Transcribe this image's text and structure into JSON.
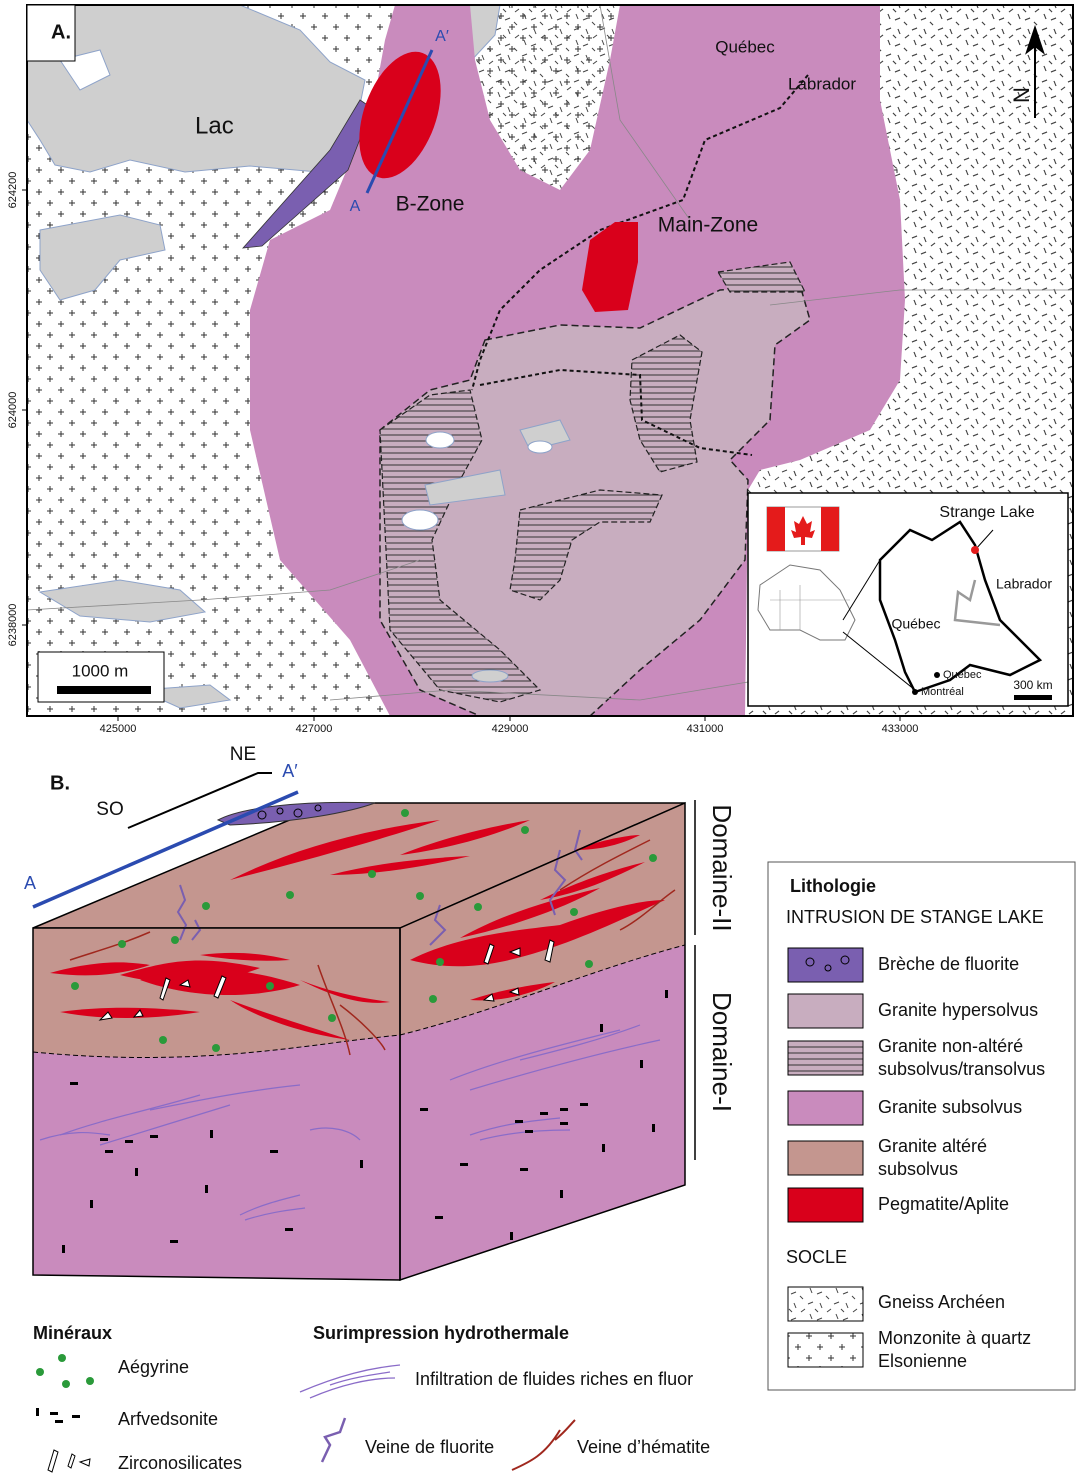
{
  "panel_a": {
    "label": "A.",
    "lake": "Lac",
    "b_zone": "B-Zone",
    "main_zone": "Main-Zone",
    "quebec": "Québec",
    "labrador": "Labrador",
    "section_start": "A",
    "section_end": "A′",
    "north": "N",
    "scale": "1000 m",
    "x_axis": [
      "425000",
      "427000",
      "429000",
      "431000",
      "433000"
    ],
    "y_axis": [
      "624200",
      "624000",
      "6238000"
    ],
    "inset": {
      "site": "Strange Lake",
      "labrador": "Labrador",
      "quebec_province": "Québec",
      "quebec_city": "Québec",
      "montreal": "Montréal",
      "scale": "300 km"
    }
  },
  "panel_b": {
    "label": "B.",
    "ne": "NE",
    "so": "SO",
    "section_start": "A",
    "section_end": "A′",
    "domain_2": "Domaine-II",
    "domain_1": "Domaine-I"
  },
  "legend": {
    "title": "Lithologie",
    "intrusion_heading": "INTRUSION DE STANGE LAKE",
    "intrusion_items": [
      [
        "Brèche de fluorite"
      ],
      [
        "Granite hypersolvus"
      ],
      [
        "Granite non-altéré",
        "subsolvus/transolvus"
      ],
      [
        "Granite subsolvus"
      ],
      [
        "Granite altéré",
        "subsolvus"
      ],
      [
        "Pegmatite/Aplite"
      ]
    ],
    "basement_heading": "SOCLE",
    "basement_items": [
      [
        "Gneiss Archéen"
      ],
      [
        "Monzonite à quartz",
        "Elsonienne"
      ]
    ]
  },
  "minerals": {
    "title": "Minéraux",
    "items": [
      "Aégyrine",
      "Arfvedsonite",
      "Zirconosilicates"
    ]
  },
  "hydrothermal": {
    "title": "Surimpression hydrothermale",
    "items": [
      "Infiltration de fluides riches en fluor",
      "Veine de fluorite",
      "Veine d’hématite"
    ]
  }
}
